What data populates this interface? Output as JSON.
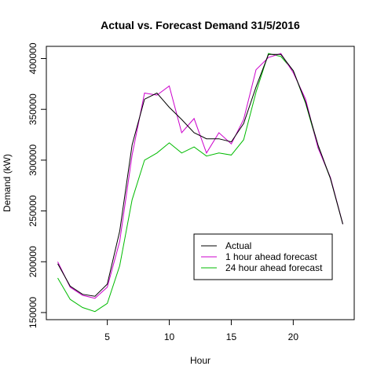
{
  "chart_data": {
    "type": "line",
    "title": "Actual vs. Forecast Demand 31/5/2016",
    "xlabel": "Hour",
    "ylabel": "Demand (kW)",
    "xlim": [
      0.08,
      24.92
    ],
    "ylim": [
      143000,
      412000
    ],
    "x_ticks": [
      5,
      10,
      15,
      20
    ],
    "y_ticks": [
      150000,
      200000,
      250000,
      300000,
      350000,
      400000
    ],
    "grid": false,
    "legend_position": "bottom-right",
    "x": [
      1,
      2,
      3,
      4,
      5,
      6,
      7,
      8,
      9,
      10,
      11,
      12,
      13,
      14,
      15,
      16,
      17,
      18,
      19,
      20,
      21,
      22,
      23,
      24
    ],
    "series": [
      {
        "name": "Actual",
        "color": "#000000",
        "values": [
          198000,
          176000,
          168000,
          166000,
          178000,
          230000,
          315000,
          360000,
          366000,
          352000,
          340000,
          327000,
          321000,
          321000,
          318000,
          336000,
          372000,
          404000,
          404000,
          388000,
          357000,
          315000,
          282000,
          237000
        ]
      },
      {
        "name": "1 hour ahead forecast",
        "color": "#cc00cc",
        "values": [
          200000,
          175000,
          167000,
          164000,
          175000,
          220000,
          305000,
          366000,
          364000,
          373000,
          327000,
          341000,
          307000,
          327000,
          316000,
          340000,
          389000,
          401000,
          405000,
          386000,
          360000,
          312000,
          283000,
          237000
        ]
      },
      {
        "name": "24 hour ahead forecast",
        "color": "#00bb00",
        "values": [
          184000,
          163000,
          155000,
          151000,
          159000,
          196000,
          261000,
          300000,
          307000,
          317000,
          307000,
          313000,
          304000,
          307000,
          305000,
          320000,
          367000,
          405000,
          402000,
          388000,
          356000,
          313000,
          282000,
          237000
        ]
      }
    ]
  }
}
